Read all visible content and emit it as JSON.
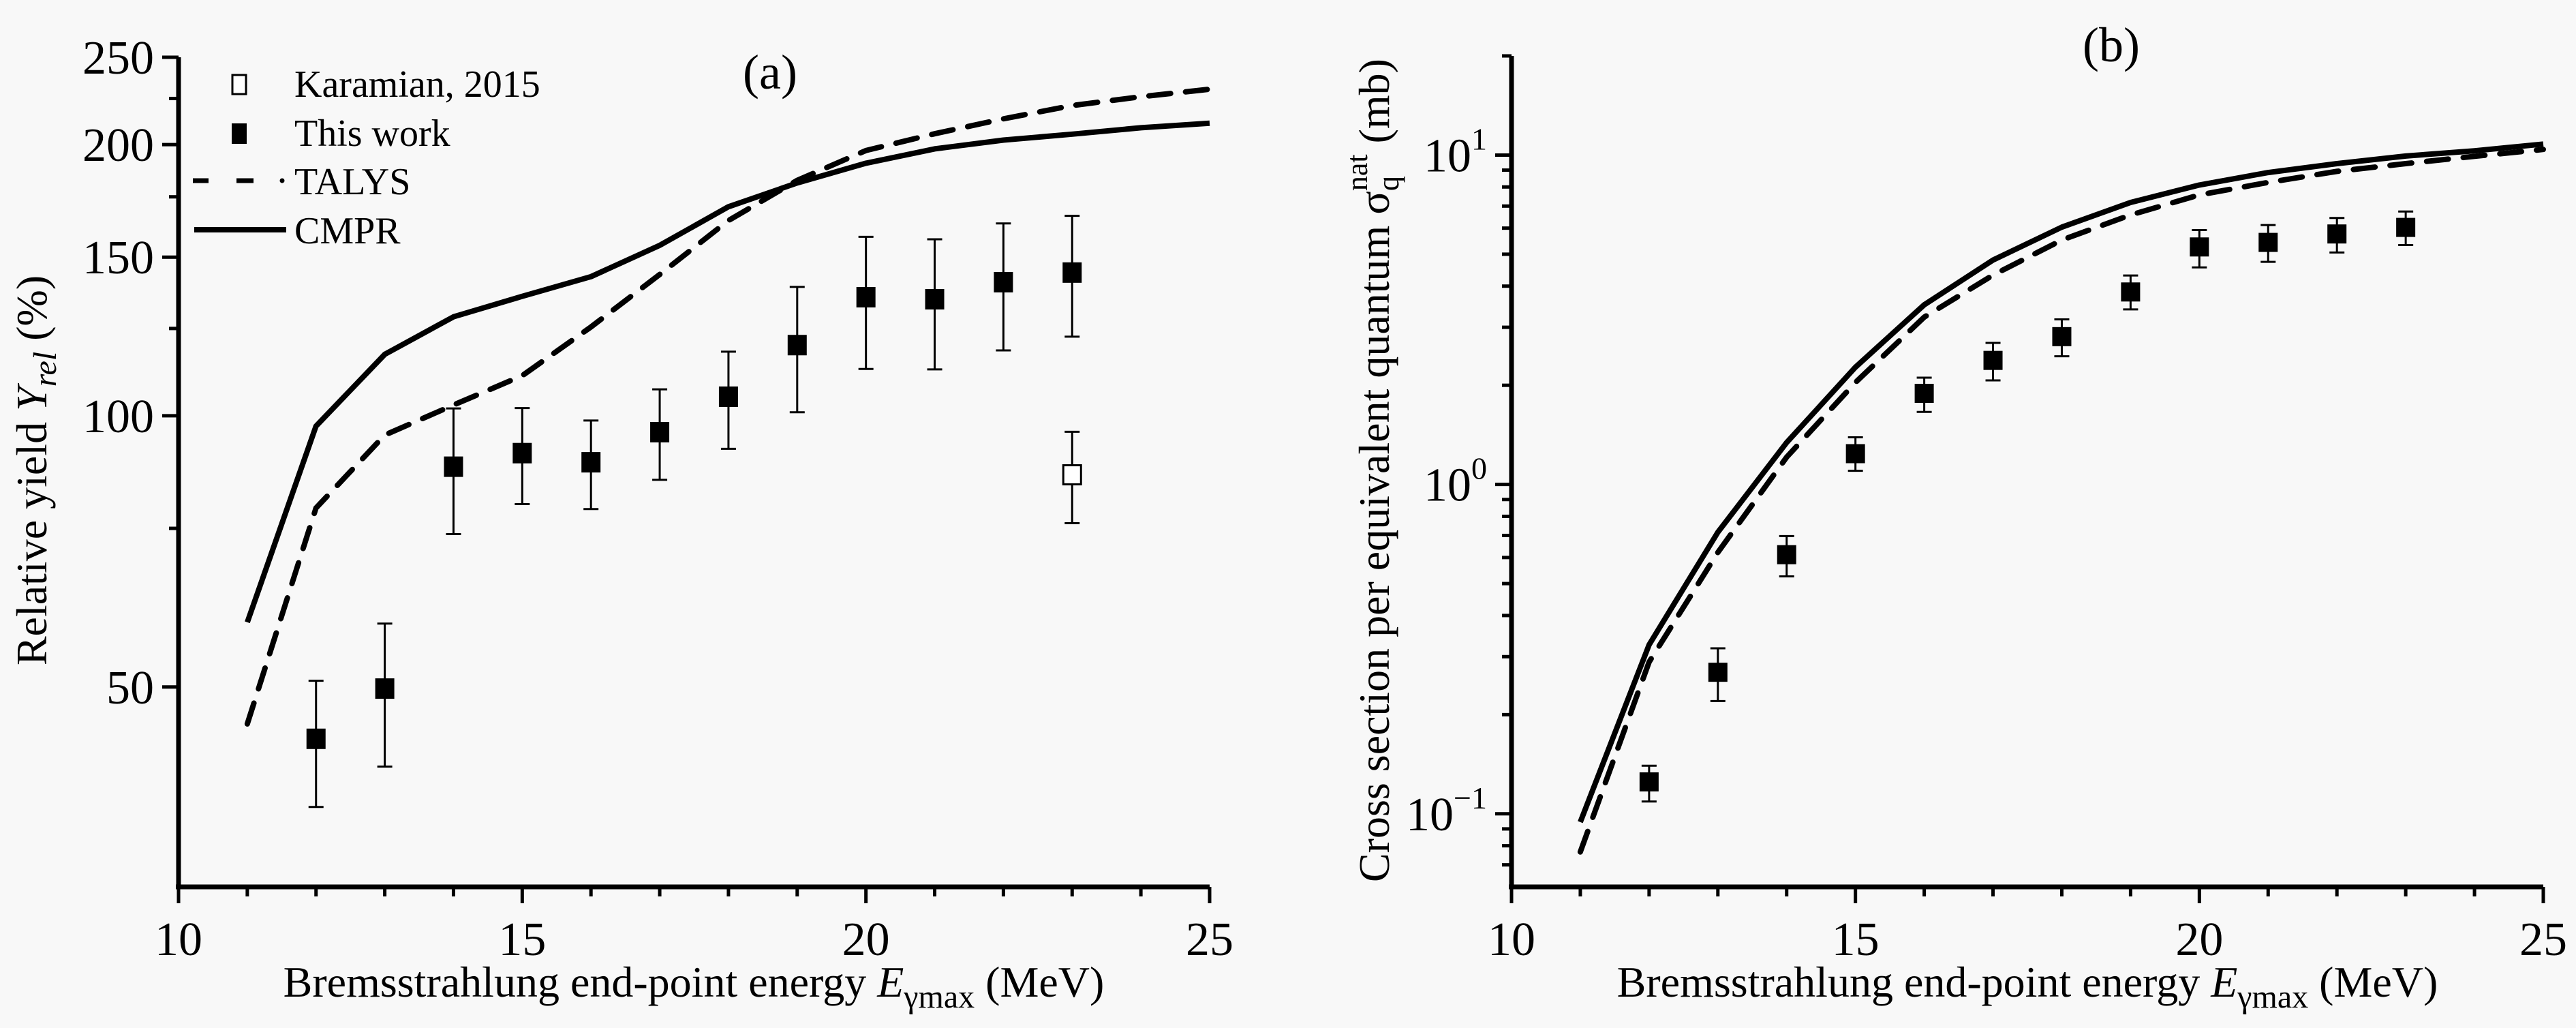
{
  "chart_data": [
    {
      "panel_label": "(a)",
      "type": "scatter",
      "xlabel": "Bremsstrahlung end-point energy E_γmax (MeV)",
      "xlabel_parts": {
        "pre": "Bremsstrahlung end-point energy ",
        "var": "E",
        "sub": "γmax",
        "post": " (MeV)"
      },
      "ylabel": "Relative yield Y_rel (%)",
      "ylabel_parts": {
        "pre": "Relative yield ",
        "var": "Y",
        "sub": "rel",
        "post": " (%)"
      },
      "xlim": [
        10,
        25
      ],
      "ylim": [
        30,
        250
      ],
      "yscale": "log",
      "x_ticks": [
        10,
        15,
        20,
        25
      ],
      "x_tick_labels": [
        "10",
        "15",
        "20",
        "25"
      ],
      "y_ticks": [
        50,
        100,
        150,
        200,
        250
      ],
      "y_tick_labels": [
        "50",
        "100",
        "150",
        "200",
        "250"
      ],
      "y_minor_ticks": [
        75,
        125,
        175,
        225
      ],
      "x_minor_step": 1,
      "grid": false,
      "legend_position": "top-left",
      "legend": [
        {
          "label": "Karamian, 2015",
          "style": "open-square"
        },
        {
          "label": "This work",
          "style": "filled-square"
        },
        {
          "label": "TALYS",
          "style": "dashed-line"
        },
        {
          "label": "CMPR",
          "style": "solid-line"
        }
      ],
      "series": [
        {
          "name": "Karamian, 2015",
          "kind": "points",
          "marker": "open-square",
          "x": [
            23
          ],
          "y": [
            86
          ],
          "err_low": [
            76
          ],
          "err_high": [
            96
          ]
        },
        {
          "name": "This work",
          "kind": "points",
          "marker": "filled-square",
          "x": [
            12,
            13,
            14,
            15,
            16,
            17,
            18,
            19,
            20,
            21,
            22,
            23
          ],
          "y": [
            43.8,
            49.8,
            87.8,
            90.9,
            88.8,
            95.9,
            105,
            119.8,
            135.4,
            134.7,
            140.7,
            144.2
          ],
          "err_low": [
            36.8,
            40.8,
            73.9,
            79.8,
            78.8,
            84.9,
            91.9,
            100.9,
            112.7,
            112.6,
            118.2,
            122.4
          ],
          "err_high": [
            50.8,
            58.8,
            101.9,
            102,
            98.8,
            107,
            117.8,
            139,
            158,
            157,
            163.5,
            166.7
          ]
        },
        {
          "name": "TALYS",
          "kind": "line",
          "line": "dashed",
          "x": [
            11,
            12,
            13,
            14,
            15,
            16,
            17,
            18,
            19,
            20,
            21,
            22,
            23,
            24,
            25
          ],
          "y": [
            45.5,
            79,
            95.2,
            102.8,
            110.8,
            125.5,
            143.5,
            164.7,
            182.5,
            197,
            205.6,
            213.6,
            221,
            226,
            230.4
          ]
        },
        {
          "name": "CMPR",
          "kind": "line",
          "line": "solid",
          "x": [
            11,
            12,
            13,
            14,
            15,
            16,
            17,
            18,
            19,
            20,
            21,
            22,
            23,
            24,
            25
          ],
          "y": [
            59,
            97.4,
            117,
            128.8,
            135.7,
            142.7,
            154.6,
            170.6,
            181.3,
            190.7,
            197.8,
            202.3,
            205.4,
            208.8,
            211.2
          ]
        }
      ]
    },
    {
      "panel_label": "(b)",
      "type": "scatter",
      "xlabel": "Bremsstrahlung end-point energy E_γmax (MeV)",
      "xlabel_parts": {
        "pre": "Bremsstrahlung end-point energy ",
        "var": "E",
        "sub": "γmax",
        "post": " (MeV)"
      },
      "ylabel": "Cross section per equivalent quantum σ_q^nat (mb)",
      "ylabel_parts": {
        "pre": "Cross section per equivalent quantum ",
        "var": "σ",
        "sub": "q",
        "sup": "nat",
        "post": " (mb)"
      },
      "xlim": [
        10,
        25
      ],
      "ylim": [
        0.06,
        20
      ],
      "yscale": "log",
      "x_ticks": [
        10,
        15,
        20,
        25
      ],
      "x_tick_labels": [
        "10",
        "15",
        "20",
        "25"
      ],
      "y_ticks": [
        0.1,
        1,
        10
      ],
      "y_tick_labels": [
        {
          "base": "10",
          "exp": "−1"
        },
        {
          "base": "10",
          "exp": "0"
        },
        {
          "base": "10",
          "exp": "1"
        }
      ],
      "y_minor_ticks": [
        0.07,
        0.08,
        0.09,
        0.2,
        0.3,
        0.4,
        0.5,
        0.6,
        0.7,
        0.8,
        0.9,
        2,
        3,
        4,
        5,
        6,
        7,
        8,
        9,
        20
      ],
      "x_minor_step": 1,
      "grid": false,
      "series": [
        {
          "name": "This work",
          "kind": "points",
          "marker": "filled-square",
          "x": [
            12,
            13,
            14,
            15,
            16,
            17,
            18,
            19,
            20,
            21,
            22,
            23
          ],
          "y": [
            0.125,
            0.269,
            0.612,
            1.24,
            1.89,
            2.38,
            2.81,
            3.84,
            5.26,
            5.43,
            5.76,
            6.03
          ],
          "err_low": [
            0.109,
            0.22,
            0.526,
            1.1,
            1.66,
            2.07,
            2.45,
            3.4,
            4.56,
            4.74,
            5.06,
            5.33
          ],
          "err_high": [
            0.14,
            0.318,
            0.697,
            1.39,
            2.11,
            2.69,
            3.17,
            4.31,
            5.92,
            6.13,
            6.44,
            6.74
          ]
        },
        {
          "name": "TALYS",
          "kind": "line",
          "line": "dashed",
          "x": [
            11,
            12,
            13,
            14,
            15,
            16,
            17,
            18,
            19,
            20,
            21,
            22,
            23,
            24,
            25
          ],
          "y": [
            0.0766,
            0.289,
            0.622,
            1.21,
            2.04,
            3.22,
            4.32,
            5.52,
            6.58,
            7.57,
            8.26,
            8.92,
            9.42,
            9.91,
            10.4
          ]
        },
        {
          "name": "CMPR",
          "kind": "line",
          "line": "solid",
          "x": [
            11,
            12,
            13,
            14,
            15,
            16,
            17,
            18,
            19,
            20,
            21,
            22,
            23,
            24,
            25
          ],
          "y": [
            0.0944,
            0.326,
            0.716,
            1.34,
            2.27,
            3.51,
            4.8,
            6.04,
            7.18,
            8.11,
            8.85,
            9.42,
            9.93,
            10.3,
            10.8
          ]
        }
      ]
    }
  ]
}
